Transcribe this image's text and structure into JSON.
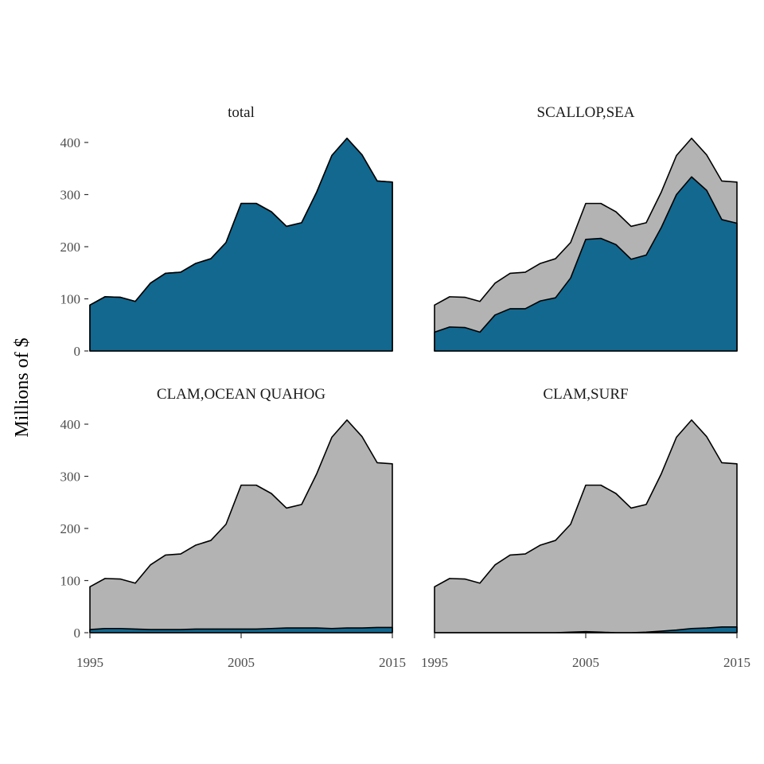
{
  "chart_data": {
    "type": "area",
    "ylabel": "Millions of $",
    "xlim": [
      1995,
      2015
    ],
    "ylim": [
      0,
      400
    ],
    "x_ticks": [
      "1995",
      "2005",
      "2015"
    ],
    "y_ticks": [
      "0",
      "100",
      "200",
      "300",
      "400"
    ],
    "grid": false,
    "x": [
      1995,
      1996,
      1997,
      1998,
      1999,
      2000,
      2001,
      2002,
      2003,
      2004,
      2005,
      2006,
      2007,
      2008,
      2009,
      2010,
      2011,
      2012,
      2013,
      2014,
      2015
    ],
    "total": [
      88,
      104,
      103,
      95,
      130,
      149,
      151,
      168,
      177,
      208,
      283,
      283,
      267,
      239,
      246,
      305,
      375,
      408,
      376,
      326,
      324
    ],
    "colors": {
      "highlight": "#12688F",
      "rest": "#B3B3B3",
      "outline": "#000000"
    },
    "facets": [
      {
        "title": "total",
        "values": [
          88,
          104,
          103,
          95,
          130,
          149,
          151,
          168,
          177,
          208,
          283,
          283,
          267,
          239,
          246,
          305,
          375,
          408,
          376,
          326,
          324
        ]
      },
      {
        "title": "SCALLOP,SEA",
        "values": [
          36,
          46,
          45,
          36,
          69,
          81,
          81,
          96,
          102,
          140,
          214,
          216,
          204,
          176,
          184,
          237,
          300,
          334,
          308,
          252,
          245
        ]
      },
      {
        "title": "CLAM,OCEAN QUAHOG",
        "values": [
          6,
          8,
          8,
          7,
          6,
          6,
          6,
          7,
          7,
          7,
          7,
          7,
          8,
          9,
          9,
          9,
          8,
          9,
          9,
          10,
          10
        ]
      },
      {
        "title": "CLAM,SURF",
        "values": [
          0,
          0,
          0,
          0,
          0,
          0,
          0,
          0,
          0,
          1,
          2,
          1,
          0,
          0,
          1,
          3,
          5,
          8,
          9,
          11,
          11
        ]
      }
    ]
  }
}
